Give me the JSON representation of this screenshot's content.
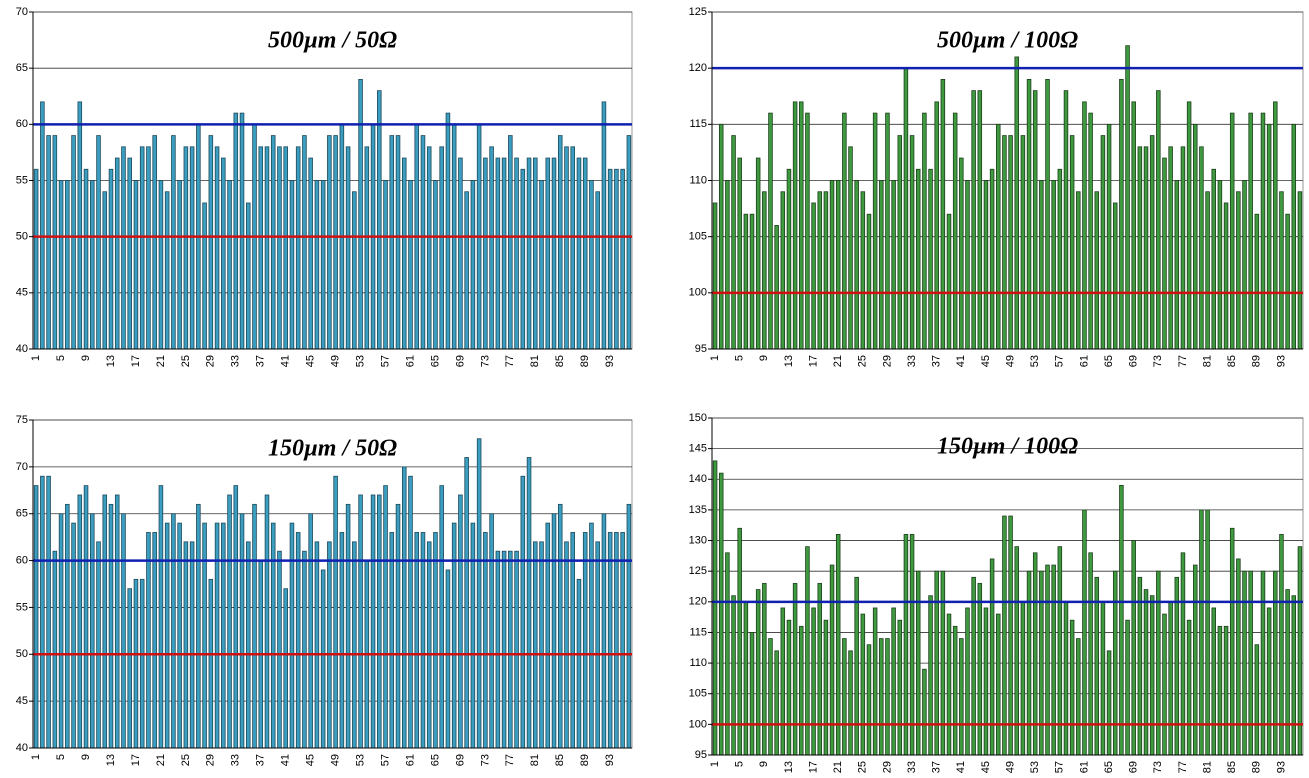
{
  "chart_data": [
    {
      "type": "bar",
      "title": "500µm / 50Ω",
      "color": "#3b9dbf",
      "edge": "#1d4a5a",
      "grid": true,
      "categories": [
        "1",
        null,
        null,
        null,
        "5",
        null,
        null,
        null,
        "9",
        null,
        null,
        null,
        "13",
        null,
        null,
        null,
        "17",
        null,
        null,
        null,
        "21",
        null,
        null,
        null,
        "25",
        null,
        null,
        null,
        "29",
        null,
        null,
        null,
        "33",
        null,
        null,
        null,
        "37",
        null,
        null,
        null,
        "41",
        null,
        null,
        null,
        "45",
        null,
        null,
        null,
        "49",
        null,
        null,
        null,
        "53",
        null,
        null,
        null,
        "57",
        null,
        null,
        null,
        "61",
        null,
        null,
        null,
        "65",
        null,
        null,
        null,
        "69",
        null,
        null,
        null,
        "73",
        null,
        null,
        null,
        "77",
        null,
        null,
        null,
        "81",
        null,
        null,
        null,
        "85",
        null,
        null,
        null,
        "89",
        null,
        null,
        null,
        "93",
        null,
        null,
        null
      ],
      "values": [
        56,
        62,
        59,
        59,
        55,
        55,
        59,
        62,
        56,
        55,
        59,
        54,
        56,
        57,
        58,
        57,
        55,
        58,
        58,
        59,
        55,
        54,
        59,
        55,
        58,
        58,
        60,
        53,
        59,
        58,
        57,
        55,
        61,
        61,
        53,
        60,
        58,
        58,
        59,
        58,
        58,
        55,
        58,
        59,
        57,
        55,
        55,
        59,
        59,
        60,
        58,
        54,
        64,
        58,
        60,
        63,
        55,
        59,
        59,
        57,
        55,
        60,
        59,
        58,
        55,
        58,
        61,
        60,
        57,
        54,
        55,
        60,
        57,
        58,
        57,
        57,
        59,
        57,
        56,
        57,
        57,
        55,
        57,
        57,
        59,
        58,
        58,
        57,
        57,
        55,
        54,
        62,
        56,
        56,
        56,
        59
      ],
      "ylim": [
        40,
        70
      ],
      "yticks": [
        40,
        45,
        50,
        55,
        60,
        65,
        70
      ],
      "reference_lines": [
        {
          "value": 60,
          "color": "#1020b0"
        },
        {
          "value": 50,
          "color": "#d01010"
        }
      ]
    },
    {
      "type": "bar",
      "title": "500µm / 100Ω",
      "color": "#3f9a3f",
      "edge": "#1a3f1a",
      "grid": true,
      "categories": [
        "1",
        null,
        null,
        null,
        "5",
        null,
        null,
        null,
        "9",
        null,
        null,
        null,
        "13",
        null,
        null,
        null,
        "17",
        null,
        null,
        null,
        "21",
        null,
        null,
        null,
        "25",
        null,
        null,
        null,
        "29",
        null,
        null,
        null,
        "33",
        null,
        null,
        null,
        "37",
        null,
        null,
        null,
        "41",
        null,
        null,
        null,
        "45",
        null,
        null,
        null,
        "49",
        null,
        null,
        null,
        "53",
        null,
        null,
        null,
        "57",
        null,
        null,
        null,
        "61",
        null,
        null,
        null,
        "65",
        null,
        null,
        null,
        "69",
        null,
        null,
        null,
        "73",
        null,
        null,
        null,
        "77",
        null,
        null,
        null,
        "81",
        null,
        null,
        null,
        "85",
        null,
        null,
        null,
        "89",
        null,
        null,
        null,
        "93",
        null,
        null,
        null
      ],
      "values": [
        108,
        115,
        110,
        114,
        112,
        107,
        107,
        112,
        109,
        116,
        106,
        109,
        111,
        117,
        117,
        116,
        108,
        109,
        109,
        110,
        110,
        116,
        113,
        110,
        109,
        107,
        116,
        110,
        116,
        110,
        114,
        120,
        114,
        111,
        116,
        111,
        117,
        119,
        107,
        116,
        112,
        110,
        118,
        118,
        110,
        111,
        115,
        114,
        114,
        121,
        114,
        119,
        118,
        110,
        119,
        110,
        111,
        118,
        114,
        109,
        117,
        116,
        109,
        114,
        115,
        108,
        119,
        122,
        117,
        113,
        113,
        114,
        118,
        112,
        113,
        110,
        113,
        117,
        115,
        113,
        109,
        111,
        110,
        108,
        116,
        109,
        110,
        116,
        107,
        116,
        115,
        117,
        109,
        107,
        115,
        109
      ],
      "ylim": [
        95,
        125
      ],
      "yticks": [
        95,
        100,
        105,
        110,
        115,
        120,
        125
      ],
      "reference_lines": [
        {
          "value": 120,
          "color": "#1020b0"
        },
        {
          "value": 100,
          "color": "#d01010"
        }
      ]
    },
    {
      "type": "bar",
      "title": "150µm / 50Ω",
      "color": "#3b9dbf",
      "edge": "#1d4a5a",
      "grid": true,
      "categories": [
        "1",
        null,
        null,
        null,
        "5",
        null,
        null,
        null,
        "9",
        null,
        null,
        null,
        "13",
        null,
        null,
        null,
        "17",
        null,
        null,
        null,
        "21",
        null,
        null,
        null,
        "25",
        null,
        null,
        null,
        "29",
        null,
        null,
        null,
        "33",
        null,
        null,
        null,
        "37",
        null,
        null,
        null,
        "41",
        null,
        null,
        null,
        "45",
        null,
        null,
        null,
        "49",
        null,
        null,
        null,
        "53",
        null,
        null,
        null,
        "57",
        null,
        null,
        null,
        "61",
        null,
        null,
        null,
        "65",
        null,
        null,
        null,
        "69",
        null,
        null,
        null,
        "73",
        null,
        null,
        null,
        "77",
        null,
        null,
        null,
        "81",
        null,
        null,
        null,
        "85",
        null,
        null,
        null,
        "89",
        null,
        null,
        null,
        "93",
        null,
        null,
        null
      ],
      "values": [
        68,
        69,
        69,
        61,
        65,
        66,
        64,
        67,
        68,
        65,
        62,
        67,
        66,
        67,
        65,
        57,
        58,
        58,
        63,
        63,
        68,
        64,
        65,
        64,
        62,
        62,
        66,
        64,
        58,
        64,
        64,
        67,
        68,
        65,
        62,
        66,
        60,
        67,
        64,
        61,
        57,
        64,
        63,
        61,
        65,
        62,
        59,
        62,
        69,
        63,
        66,
        62,
        67,
        60,
        67,
        67,
        68,
        63,
        66,
        70,
        69,
        63,
        63,
        62,
        63,
        68,
        59,
        64,
        67,
        71,
        64,
        73,
        63,
        65,
        61,
        61,
        61,
        61,
        69,
        71,
        62,
        62,
        64,
        65,
        66,
        62,
        63,
        58,
        63,
        64,
        62,
        65,
        63,
        63,
        63,
        66
      ],
      "ylim": [
        40,
        75
      ],
      "yticks": [
        40,
        45,
        50,
        55,
        60,
        65,
        70,
        75
      ],
      "reference_lines": [
        {
          "value": 60,
          "color": "#1020b0"
        },
        {
          "value": 50,
          "color": "#d01010"
        }
      ]
    },
    {
      "type": "bar",
      "title": "150µm / 100Ω",
      "color": "#3f9a3f",
      "edge": "#1a3f1a",
      "grid": true,
      "categories": [
        "1",
        null,
        null,
        null,
        "5",
        null,
        null,
        null,
        "9",
        null,
        null,
        null,
        "13",
        null,
        null,
        null,
        "17",
        null,
        null,
        null,
        "21",
        null,
        null,
        null,
        "25",
        null,
        null,
        null,
        "29",
        null,
        null,
        null,
        "33",
        null,
        null,
        null,
        "37",
        null,
        null,
        null,
        "41",
        null,
        null,
        null,
        "45",
        null,
        null,
        null,
        "49",
        null,
        null,
        null,
        "53",
        null,
        null,
        null,
        "57",
        null,
        null,
        null,
        "61",
        null,
        null,
        null,
        "65",
        null,
        null,
        null,
        "69",
        null,
        null,
        null,
        "73",
        null,
        null,
        null,
        "77",
        null,
        null,
        null,
        "81",
        null,
        null,
        null,
        "85",
        null,
        null,
        null,
        "89",
        null,
        null,
        null,
        "93",
        null,
        null,
        null
      ],
      "values": [
        143,
        141,
        128,
        121,
        132,
        120,
        115,
        122,
        123,
        114,
        112,
        119,
        117,
        123,
        116,
        129,
        119,
        123,
        117,
        126,
        131,
        114,
        112,
        124,
        118,
        113,
        119,
        114,
        114,
        119,
        117,
        131,
        131,
        125,
        109,
        121,
        125,
        125,
        118,
        116,
        114,
        119,
        124,
        123,
        119,
        127,
        118,
        134,
        134,
        129,
        120,
        125,
        128,
        125,
        126,
        126,
        129,
        120,
        117,
        114,
        135,
        128,
        124,
        120,
        112,
        125,
        139,
        117,
        130,
        124,
        122,
        121,
        125,
        118,
        120,
        124,
        128,
        117,
        126,
        135,
        135,
        119,
        116,
        116,
        132,
        127,
        125,
        125,
        113,
        125,
        119,
        125,
        131,
        122,
        121,
        129
      ],
      "ylim": [
        95,
        150
      ],
      "yticks": [
        95,
        100,
        105,
        110,
        115,
        120,
        125,
        130,
        135,
        140,
        145,
        150
      ],
      "reference_lines": [
        {
          "value": 120,
          "color": "#1020b0"
        },
        {
          "value": 100,
          "color": "#d01010"
        }
      ]
    }
  ]
}
